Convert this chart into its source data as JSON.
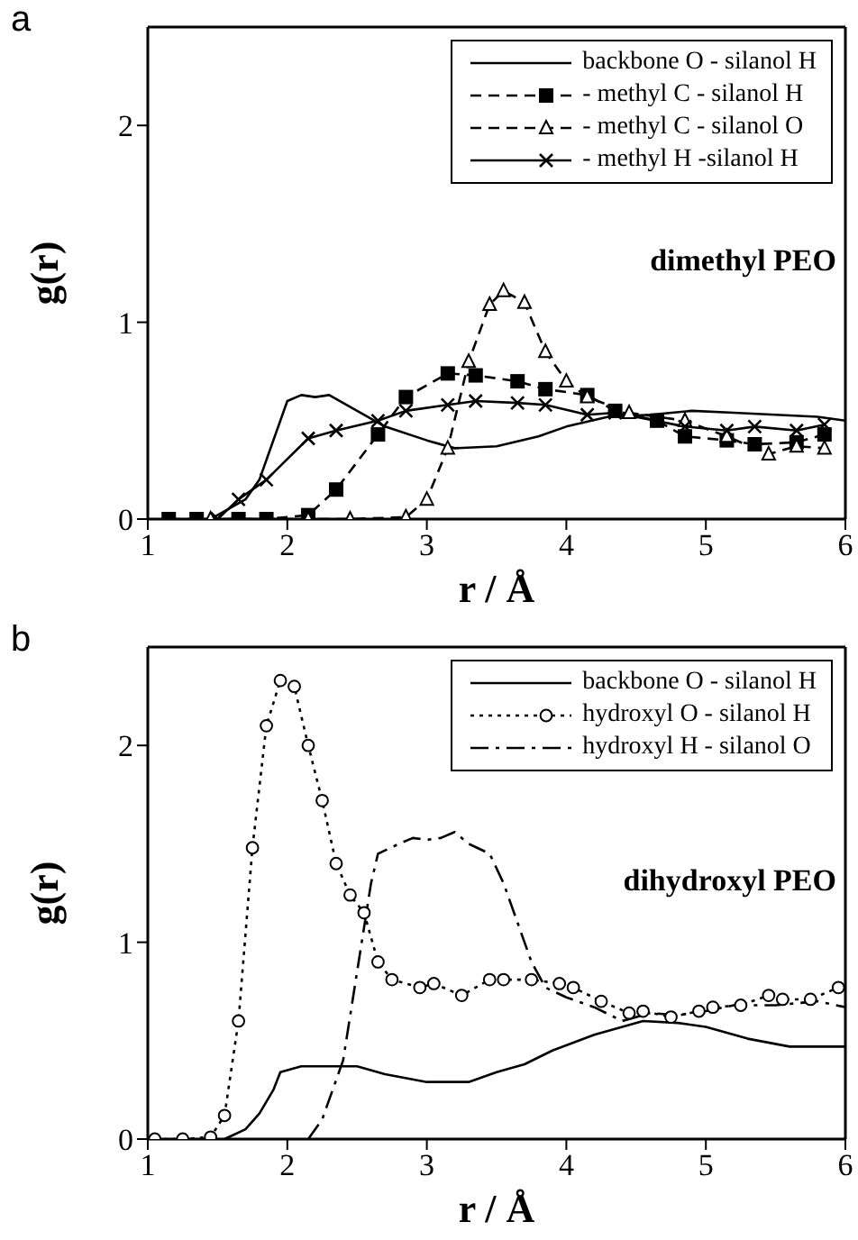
{
  "chart_data": [
    {
      "type": "line",
      "title": "a",
      "xlabel": "r / Å",
      "ylabel": "g(r)",
      "annotations": [
        "dimethyl PEO"
      ],
      "xlim": [
        1,
        6
      ],
      "ylim": [
        0,
        2.5
      ],
      "xticks": [
        1,
        2,
        3,
        4,
        5,
        6
      ],
      "yticks": [
        0,
        1,
        2
      ],
      "legend": "top right",
      "series": [
        {
          "name": "backbone O - silanol H",
          "color": "#000000",
          "line_style": "solid",
          "marker": "none",
          "x": [
            1.45,
            1.7,
            1.8,
            1.9,
            2.0,
            2.1,
            2.2,
            2.3,
            2.5,
            2.7,
            3.0,
            3.2,
            3.5,
            3.8,
            4.0,
            4.3,
            4.6,
            4.9,
            5.2,
            5.5,
            5.8,
            6.0
          ],
          "values": [
            0,
            0.1,
            0.2,
            0.4,
            0.6,
            0.63,
            0.62,
            0.63,
            0.55,
            0.47,
            0.4,
            0.36,
            0.37,
            0.42,
            0.47,
            0.52,
            0.53,
            0.55,
            0.54,
            0.53,
            0.52,
            0.5
          ]
        },
        {
          "name": "- methyl C - silanol H",
          "color": "#000000",
          "line_style": "dashed",
          "marker": "square",
          "x": [
            1.15,
            1.35,
            1.65,
            1.85,
            2.15,
            2.35,
            2.65,
            2.85,
            3.15,
            3.35,
            3.65,
            3.85,
            4.15,
            4.35,
            4.65,
            4.85,
            5.15,
            5.35,
            5.65,
            5.85
          ],
          "values": [
            0,
            0,
            0,
            0,
            0.02,
            0.15,
            0.43,
            0.62,
            0.74,
            0.73,
            0.7,
            0.66,
            0.63,
            0.55,
            0.5,
            0.42,
            0.4,
            0.38,
            0.39,
            0.43
          ]
        },
        {
          "name": "- methyl C - silanol O",
          "color": "#000000",
          "line_style": "dashed",
          "marker": "triangle",
          "x": [
            1.45,
            2.15,
            2.45,
            2.85,
            3.0,
            3.15,
            3.3,
            3.45,
            3.55,
            3.7,
            3.85,
            4.0,
            4.15,
            4.45,
            4.85,
            5.15,
            5.45,
            5.65,
            5.85
          ],
          "values": [
            0,
            0,
            0,
            0.01,
            0.1,
            0.36,
            0.8,
            1.09,
            1.16,
            1.1,
            0.85,
            0.7,
            0.62,
            0.54,
            0.5,
            0.42,
            0.33,
            0.37,
            0.36
          ]
        },
        {
          "name": "- methyl H -silanol H",
          "color": "#000000",
          "line_style": "solid",
          "marker": "cross",
          "x": [
            1.5,
            1.65,
            1.85,
            2.15,
            2.35,
            2.65,
            2.85,
            3.15,
            3.35,
            3.65,
            3.85,
            4.15,
            4.35,
            4.85,
            5.15,
            5.35,
            5.65,
            5.85
          ],
          "values": [
            0,
            0.1,
            0.2,
            0.41,
            0.45,
            0.5,
            0.55,
            0.58,
            0.6,
            0.59,
            0.58,
            0.53,
            0.54,
            0.47,
            0.45,
            0.47,
            0.45,
            0.48
          ]
        }
      ]
    },
    {
      "type": "line",
      "title": "b",
      "xlabel": "r / Å",
      "ylabel": "g(r)",
      "annotations": [
        "dihydroxyl PEO"
      ],
      "xlim": [
        1,
        6
      ],
      "ylim": [
        0,
        2.5
      ],
      "xticks": [
        1,
        2,
        3,
        4,
        5,
        6
      ],
      "yticks": [
        0,
        1,
        2
      ],
      "legend": "top right",
      "series": [
        {
          "name": "backbone O - silanol H",
          "color": "#000000",
          "line_style": "solid",
          "marker": "none",
          "x": [
            1.55,
            1.7,
            1.8,
            1.9,
            1.95,
            2.1,
            2.3,
            2.5,
            2.7,
            3.0,
            3.3,
            3.5,
            3.7,
            3.9,
            4.2,
            4.55,
            4.8,
            5.0,
            5.3,
            5.6,
            6.0
          ],
          "values": [
            0,
            0.05,
            0.13,
            0.25,
            0.34,
            0.37,
            0.37,
            0.37,
            0.33,
            0.29,
            0.29,
            0.34,
            0.38,
            0.45,
            0.53,
            0.6,
            0.59,
            0.57,
            0.51,
            0.47,
            0.47
          ]
        },
        {
          "name": "hydroxyl O - silanol H",
          "color": "#000000",
          "line_style": "dotted",
          "marker": "circle",
          "x": [
            1.05,
            1.25,
            1.45,
            1.55,
            1.65,
            1.75,
            1.85,
            1.95,
            2.05,
            2.15,
            2.25,
            2.35,
            2.45,
            2.55,
            2.65,
            2.75,
            2.95,
            3.05,
            3.25,
            3.45,
            3.55,
            3.75,
            3.95,
            4.05,
            4.25,
            4.45,
            4.55,
            4.75,
            4.95,
            5.05,
            5.25,
            5.45,
            5.55,
            5.75,
            5.95
          ],
          "values": [
            0,
            0,
            0.01,
            0.12,
            0.6,
            1.48,
            2.1,
            2.33,
            2.3,
            2.0,
            1.72,
            1.4,
            1.24,
            1.15,
            0.9,
            0.81,
            0.77,
            0.79,
            0.73,
            0.81,
            0.81,
            0.81,
            0.79,
            0.77,
            0.7,
            0.64,
            0.65,
            0.62,
            0.65,
            0.67,
            0.68,
            0.73,
            0.71,
            0.71,
            0.77
          ]
        },
        {
          "name": "hydroxyl H - silanol O",
          "color": "#000000",
          "line_style": "dashdot",
          "marker": "none",
          "x": [
            2.15,
            2.25,
            2.4,
            2.5,
            2.6,
            2.65,
            2.8,
            2.9,
            3.0,
            3.1,
            3.2,
            3.3,
            3.45,
            3.55,
            3.65,
            3.75,
            3.85,
            4.0,
            4.2,
            4.4,
            4.6,
            4.8,
            5.0,
            5.2,
            5.5,
            5.8,
            6.0
          ],
          "values": [
            0,
            0.1,
            0.4,
            0.85,
            1.3,
            1.45,
            1.5,
            1.53,
            1.52,
            1.53,
            1.56,
            1.5,
            1.45,
            1.3,
            1.1,
            0.9,
            0.77,
            0.72,
            0.67,
            0.6,
            0.64,
            0.63,
            0.65,
            0.68,
            0.68,
            0.7,
            0.67
          ]
        }
      ]
    }
  ]
}
